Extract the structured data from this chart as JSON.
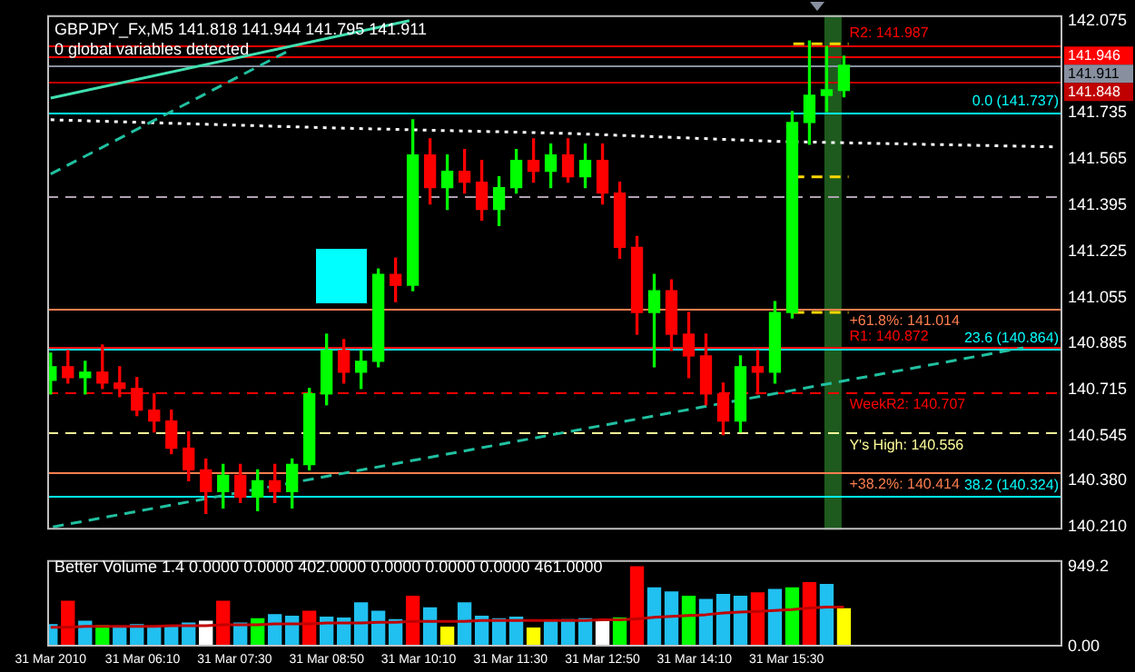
{
  "chart_data": [
    {
      "type": "candlestick",
      "title": "GBPJPY_Fx,M5 141.818 141.944 141.795 141.911",
      "subtitle": "0 global variables detected",
      "x": [
        "2010-03-31T04:50",
        "2010-03-31T05:05",
        "2010-03-31T05:20",
        "2010-03-31T05:35",
        "2010-03-31T05:50",
        "2010-03-31T06:05",
        "2010-03-31T06:20",
        "2010-03-31T06:35",
        "2010-03-31T06:50",
        "2010-03-31T07:05",
        "2010-03-31T07:20",
        "2010-03-31T07:35",
        "2010-03-31T07:50",
        "2010-03-31T08:05",
        "2010-03-31T08:20",
        "2010-03-31T08:35",
        "2010-03-31T08:50",
        "2010-03-31T09:05",
        "2010-03-31T09:20",
        "2010-03-31T09:35",
        "2010-03-31T09:50",
        "2010-03-31T10:05",
        "2010-03-31T10:20",
        "2010-03-31T10:35",
        "2010-03-31T10:50",
        "2010-03-31T11:05",
        "2010-03-31T11:20",
        "2010-03-31T11:35",
        "2010-03-31T11:50",
        "2010-03-31T12:05",
        "2010-03-31T12:20",
        "2010-03-31T12:35",
        "2010-03-31T12:50",
        "2010-03-31T13:05",
        "2010-03-31T13:20",
        "2010-03-31T13:35",
        "2010-03-31T13:50",
        "2010-03-31T14:05",
        "2010-03-31T14:20",
        "2010-03-31T14:35",
        "2010-03-31T14:50",
        "2010-03-31T15:05",
        "2010-03-31T15:20",
        "2010-03-31T15:35",
        "2010-03-31T15:50",
        "2010-03-31T16:05",
        "2010-03-31T16:20"
      ],
      "ohlc": [
        [
          140.75,
          140.85,
          140.7,
          140.8
        ],
        [
          140.8,
          140.86,
          140.74,
          140.76
        ],
        [
          140.76,
          140.82,
          140.7,
          140.78
        ],
        [
          140.78,
          140.88,
          140.72,
          140.74
        ],
        [
          140.74,
          140.8,
          140.69,
          140.72
        ],
        [
          140.72,
          140.76,
          140.62,
          140.64
        ],
        [
          140.64,
          140.7,
          140.56,
          140.6
        ],
        [
          140.6,
          140.64,
          140.48,
          140.5
        ],
        [
          140.5,
          140.56,
          140.38,
          140.42
        ],
        [
          140.42,
          140.46,
          140.26,
          140.34
        ],
        [
          140.34,
          140.44,
          140.28,
          140.4
        ],
        [
          140.4,
          140.44,
          140.3,
          140.32
        ],
        [
          140.32,
          140.42,
          140.27,
          140.38
        ],
        [
          140.38,
          140.44,
          140.3,
          140.34
        ],
        [
          140.34,
          140.46,
          140.28,
          140.44
        ],
        [
          140.44,
          140.72,
          140.42,
          140.7
        ],
        [
          140.7,
          140.92,
          140.66,
          140.86
        ],
        [
          140.86,
          140.9,
          140.74,
          140.78
        ],
        [
          140.78,
          140.86,
          140.72,
          140.82
        ],
        [
          140.82,
          141.16,
          140.8,
          141.14
        ],
        [
          141.14,
          141.2,
          141.04,
          141.1
        ],
        [
          141.1,
          141.71,
          141.08,
          141.58
        ],
        [
          141.58,
          141.64,
          141.4,
          141.46
        ],
        [
          141.46,
          141.58,
          141.38,
          141.52
        ],
        [
          141.52,
          141.6,
          141.44,
          141.48
        ],
        [
          141.48,
          141.56,
          141.34,
          141.38
        ],
        [
          141.38,
          141.5,
          141.32,
          141.46
        ],
        [
          141.46,
          141.6,
          141.44,
          141.56
        ],
        [
          141.56,
          141.64,
          141.48,
          141.52
        ],
        [
          141.52,
          141.62,
          141.46,
          141.58
        ],
        [
          141.58,
          141.64,
          141.48,
          141.5
        ],
        [
          141.5,
          141.62,
          141.46,
          141.56
        ],
        [
          141.56,
          141.62,
          141.4,
          141.44
        ],
        [
          141.44,
          141.48,
          141.2,
          141.24
        ],
        [
          141.24,
          141.28,
          140.92,
          141.0
        ],
        [
          141.0,
          141.14,
          140.8,
          141.08
        ],
        [
          141.08,
          141.12,
          140.86,
          140.92
        ],
        [
          140.92,
          141.0,
          140.76,
          140.84
        ],
        [
          140.84,
          140.92,
          140.66,
          140.7
        ],
        [
          140.7,
          140.74,
          140.55,
          140.6
        ],
        [
          140.6,
          140.84,
          140.56,
          140.8
        ],
        [
          140.8,
          140.86,
          140.7,
          140.78
        ],
        [
          140.78,
          141.04,
          140.74,
          141.0
        ],
        [
          141.0,
          141.74,
          140.98,
          141.7
        ],
        [
          141.7,
          142.0,
          141.62,
          141.8
        ],
        [
          141.8,
          141.98,
          141.74,
          141.82
        ],
        [
          141.818,
          141.944,
          141.795,
          141.911
        ]
      ],
      "series": [
        {
          "type": "line",
          "color": "#40e0b0",
          "x": [
            "2010-03-31T04:50",
            "2010-03-31T10:02"
          ],
          "values": [
            141.79,
            142.075
          ]
        },
        {
          "type": "line",
          "color": "#20c0a0",
          "line_style": "dashed",
          "x": [
            "2010-03-31T04:50",
            "2010-03-31T08:15"
          ],
          "values": [
            141.51,
            141.96
          ]
        },
        {
          "type": "line",
          "color": "#20c0a0",
          "line_style": "dashed",
          "x": [
            "2010-03-31T04:52",
            "2010-03-31T18:56"
          ],
          "values": [
            140.21,
            140.87
          ]
        },
        {
          "type": "line",
          "color": "#ffffff",
          "line_style": "dotted",
          "x": [
            "2010-03-31T04:50",
            "2010-03-31T08:54",
            "2010-03-31T12:18",
            "2010-03-31T15:24",
            "2010-03-31T19:24"
          ],
          "values": [
            141.71,
            141.68,
            141.66,
            141.63,
            141.61
          ]
        },
        {
          "type": "line",
          "color": "#ffd700",
          "line_style": "dashed",
          "x": [
            "2010-03-31T15:36",
            "2010-03-31T16:24"
          ],
          "values": [
            141.99,
            141.99
          ]
        },
        {
          "type": "line",
          "color": "#ffd700",
          "line_style": "dashed",
          "x": [
            "2010-03-31T15:36",
            "2010-03-31T16:24"
          ],
          "values": [
            141.5,
            141.5
          ]
        },
        {
          "type": "line",
          "color": "#ffd700",
          "line_style": "dashed",
          "x": [
            "2010-03-31T15:36",
            "2010-03-31T16:24"
          ],
          "values": [
            141.0,
            141.0
          ]
        }
      ],
      "xlim": [
        "2010-03-31T04:47",
        "2010-03-31T19:30"
      ],
      "ylim": [
        140.2,
        142.095
      ],
      "yticks": [
        142.075,
        141.735,
        141.565,
        141.395,
        141.225,
        141.055,
        140.885,
        140.715,
        140.545,
        {
          "value": 140.38,
          "label": "140.380"
        },
        {
          "value": 140.21,
          "label": "140.210"
        }
      ],
      "tick_labels": "y",
      "ref_lines": [
        {
          "axis": "y",
          "value": 141.987,
          "label": "R2: 141.987",
          "color": "#ff0000"
        },
        {
          "axis": "y",
          "value": 141.946,
          "label": "141.946",
          "color": "#ff0000"
        },
        {
          "axis": "y",
          "value": 141.911,
          "label": "141.911",
          "color": "#8890a0"
        },
        {
          "axis": "y",
          "value": 141.848,
          "label": "141.848",
          "color": "#c00000"
        },
        {
          "axis": "y",
          "value": 141.737,
          "label": "0.0 (141.737)",
          "color": "#00ffff"
        },
        {
          "axis": "y",
          "value": 141.43,
          "color": "#b0a0b0",
          "line_style": "dashed"
        },
        {
          "axis": "y",
          "value": 141.014,
          "label": "+61.8%: 141.014",
          "color": "#ff7f50"
        },
        {
          "axis": "y",
          "value": 140.872,
          "label": "R1: 140.872",
          "color": "#ff0000"
        },
        {
          "axis": "y",
          "value": 140.864,
          "label": "23.6 (140.864)",
          "color": "#00ffff"
        },
        {
          "axis": "y",
          "value": 140.707,
          "label": "WeekR2: 140.707",
          "color": "#ff0000",
          "line_style": "dashed"
        },
        {
          "axis": "y",
          "value": 140.556,
          "label": "Y's High: 140.556",
          "color": "#ffff99",
          "line_style": "dashed"
        },
        {
          "axis": "y",
          "value": 140.414,
          "label": "+38.2%: 140.414",
          "color": "#ff7f50"
        },
        {
          "axis": "y",
          "value": 140.324,
          "label": "38.2 (140.324)",
          "color": "#00ffff"
        }
      ],
      "bands": [
        {
          "axis": "x",
          "from": "2010-03-31T16:03",
          "to": "2010-03-31T16:18",
          "color": "#1e5a1e"
        }
      ]
    },
    {
      "type": "bar",
      "title": "Better Volume 1.4 0.0000 0.0000 402.0000 0.0000 0.0000 0.0000 461.0000",
      "x": [
        "2010-03-31T04:50",
        "2010-03-31T05:05",
        "2010-03-31T05:20",
        "2010-03-31T05:35",
        "2010-03-31T05:50",
        "2010-03-31T06:05",
        "2010-03-31T06:20",
        "2010-03-31T06:35",
        "2010-03-31T06:50",
        "2010-03-31T07:05",
        "2010-03-31T07:20",
        "2010-03-31T07:35",
        "2010-03-31T07:50",
        "2010-03-31T08:05",
        "2010-03-31T08:20",
        "2010-03-31T08:35",
        "2010-03-31T08:50",
        "2010-03-31T09:05",
        "2010-03-31T09:20",
        "2010-03-31T09:35",
        "2010-03-31T09:50",
        "2010-03-31T10:05",
        "2010-03-31T10:20",
        "2010-03-31T10:35",
        "2010-03-31T10:50",
        "2010-03-31T11:05",
        "2010-03-31T11:20",
        "2010-03-31T11:35",
        "2010-03-31T11:50",
        "2010-03-31T12:05",
        "2010-03-31T12:20",
        "2010-03-31T12:35",
        "2010-03-31T12:50",
        "2010-03-31T13:05",
        "2010-03-31T13:20",
        "2010-03-31T13:35",
        "2010-03-31T13:50",
        "2010-03-31T14:05",
        "2010-03-31T14:20",
        "2010-03-31T14:35",
        "2010-03-31T14:50",
        "2010-03-31T15:05",
        "2010-03-31T15:20",
        "2010-03-31T15:35",
        "2010-03-31T15:50",
        "2010-03-31T16:05",
        "2010-03-31T16:20"
      ],
      "series": [
        {
          "type": "bar",
          "colors": [
            "#20c0f0",
            "#ff0000",
            "#20c0f0",
            "#00ff00",
            "#20c0f0",
            "#20c0f0",
            "#20c0f0",
            "#20c0f0",
            "#20c0f0",
            "#ffffff",
            "#ff0000",
            "#20c0f0",
            "#00ff00",
            "#20c0f0",
            "#20c0f0",
            "#ff0000",
            "#20c0f0",
            "#20c0f0",
            "#20c0f0",
            "#20c0f0",
            "#20c0f0",
            "#ff0000",
            "#20c0f0",
            "#ffff00",
            "#20c0f0",
            "#20c0f0",
            "#20c0f0",
            "#20c0f0",
            "#ffff00",
            "#20c0f0",
            "#20c0f0",
            "#20c0f0",
            "#ffffff",
            "#00ff00",
            "#ff0000",
            "#20c0f0",
            "#20c0f0",
            "#00ff00",
            "#20c0f0",
            "#20c0f0",
            "#20c0f0",
            "#ff0000",
            "#20c0f0",
            "#00ff00",
            "#ff0000",
            "#20c0f0",
            "#ffff00"
          ],
          "values": [
            260,
            540,
            300,
            250,
            240,
            260,
            230,
            250,
            280,
            300,
            540,
            280,
            330,
            380,
            360,
            420,
            350,
            340,
            520,
            420,
            320,
            600,
            460,
            230,
            520,
            360,
            330,
            350,
            220,
            310,
            320,
            330,
            300,
            340,
            949.2,
            700,
            650,
            600,
            560,
            620,
            600,
            640,
            680,
            700,
            760,
            740,
            450
          ]
        },
        {
          "type": "line",
          "color": "#c00000",
          "values": [
            230,
            230,
            240,
            240,
            240,
            240,
            240,
            250,
            250,
            250,
            260,
            260,
            260,
            270,
            270,
            270,
            280,
            280,
            280,
            290,
            290,
            300,
            300,
            300,
            300,
            310,
            310,
            310,
            310,
            310,
            310,
            310,
            320,
            320,
            330,
            350,
            360,
            370,
            380,
            400,
            410,
            420,
            430,
            440,
            460,
            470,
            470
          ]
        }
      ],
      "xlim": [
        "2010-03-31T04:47",
        "2010-03-31T19:30"
      ],
      "xticks": [
        {
          "value": "2010-03-31T04:50",
          "label": "31 Mar 2010"
        },
        {
          "value": "2010-03-31T06:10",
          "label": "31 Mar 06:10"
        },
        {
          "value": "2010-03-31T07:30",
          "label": "31 Mar 07:30"
        },
        {
          "value": "2010-03-31T08:50",
          "label": "31 Mar 08:50"
        },
        {
          "value": "2010-03-31T10:10",
          "label": "31 Mar 10:10"
        },
        {
          "value": "2010-03-31T11:30",
          "label": "31 Mar 11:30"
        },
        {
          "value": "2010-03-31T12:50",
          "label": "31 Mar 12:50"
        },
        {
          "value": "2010-03-31T14:10",
          "label": "31 Mar 14:10"
        },
        {
          "value": "2010-03-31T15:30",
          "label": "31 Mar 15:30"
        }
      ],
      "ylim": [
        0,
        1030
      ],
      "yticks": [
        {
          "value": 0,
          "label": "0.00"
        },
        949.2
      ]
    }
  ]
}
